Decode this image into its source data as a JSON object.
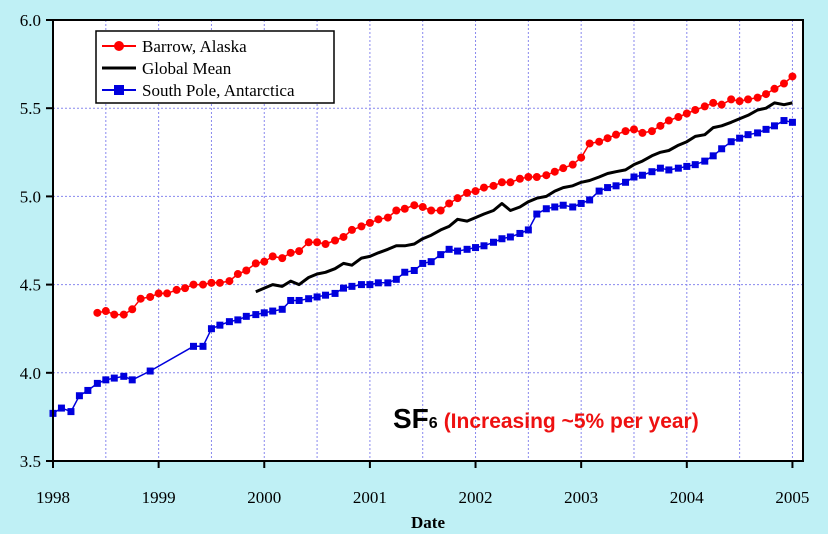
{
  "chart_data": {
    "type": "line",
    "title": "",
    "xlabel": "Date",
    "ylabel": "",
    "xlim": [
      1998.0,
      2005.1
    ],
    "ylim": [
      3.5,
      6.0
    ],
    "x_ticks": [
      "1998",
      "1999",
      "2000",
      "2001",
      "2002",
      "2003",
      "2004",
      "2005"
    ],
    "y_ticks": [
      "3.5",
      "4.0",
      "4.5",
      "5.0",
      "5.5",
      "6.0"
    ],
    "grid": true,
    "legend_position": "top-left",
    "annotation": {
      "main": "SF",
      "sub": "6",
      "note": "(Increasing ~5% per year)"
    },
    "series": [
      {
        "name": "Barrow, Alaska",
        "color": "#ff0000",
        "marker": "circle",
        "x": [
          1998.42,
          1998.5,
          1998.58,
          1998.67,
          1998.75,
          1998.83,
          1998.92,
          1999.0,
          1999.08,
          1999.17,
          1999.25,
          1999.33,
          1999.42,
          1999.5,
          1999.58,
          1999.67,
          1999.75,
          1999.83,
          1999.92,
          2000.0,
          2000.08,
          2000.17,
          2000.25,
          2000.33,
          2000.42,
          2000.5,
          2000.58,
          2000.67,
          2000.75,
          2000.83,
          2000.92,
          2001.0,
          2001.08,
          2001.17,
          2001.25,
          2001.33,
          2001.42,
          2001.5,
          2001.58,
          2001.67,
          2001.75,
          2001.83,
          2001.92,
          2002.0,
          2002.08,
          2002.17,
          2002.25,
          2002.33,
          2002.42,
          2002.5,
          2002.58,
          2002.67,
          2002.75,
          2002.83,
          2002.92,
          2003.0,
          2003.08,
          2003.17,
          2003.25,
          2003.33,
          2003.42,
          2003.5,
          2003.58,
          2003.67,
          2003.75,
          2003.83,
          2003.92,
          2004.0,
          2004.08,
          2004.17,
          2004.25,
          2004.33,
          2004.42,
          2004.5,
          2004.58,
          2004.67,
          2004.75,
          2004.83,
          2004.92,
          2005.0
        ],
        "values": [
          4.34,
          4.35,
          4.33,
          4.33,
          4.36,
          4.42,
          4.43,
          4.45,
          4.45,
          4.47,
          4.48,
          4.5,
          4.5,
          4.51,
          4.51,
          4.52,
          4.56,
          4.58,
          4.62,
          4.63,
          4.66,
          4.65,
          4.68,
          4.69,
          4.74,
          4.74,
          4.73,
          4.75,
          4.77,
          4.81,
          4.83,
          4.85,
          4.87,
          4.88,
          4.92,
          4.93,
          4.95,
          4.94,
          4.92,
          4.92,
          4.96,
          4.99,
          5.02,
          5.03,
          5.05,
          5.06,
          5.08,
          5.08,
          5.1,
          5.11,
          5.11,
          5.12,
          5.14,
          5.16,
          5.18,
          5.22,
          5.3,
          5.31,
          5.33,
          5.35,
          5.37,
          5.38,
          5.36,
          5.37,
          5.4,
          5.43,
          5.45,
          5.47,
          5.49,
          5.51,
          5.53,
          5.52,
          5.55,
          5.54,
          5.55,
          5.56,
          5.58,
          5.61,
          5.64,
          5.68
        ]
      },
      {
        "name": "Global Mean",
        "color": "#000000",
        "marker": "none",
        "x": [
          1999.92,
          2000.0,
          2000.08,
          2000.17,
          2000.25,
          2000.33,
          2000.42,
          2000.5,
          2000.58,
          2000.67,
          2000.75,
          2000.83,
          2000.92,
          2001.0,
          2001.08,
          2001.17,
          2001.25,
          2001.33,
          2001.42,
          2001.5,
          2001.58,
          2001.67,
          2001.75,
          2001.83,
          2001.92,
          2002.0,
          2002.08,
          2002.17,
          2002.25,
          2002.33,
          2002.42,
          2002.5,
          2002.58,
          2002.67,
          2002.75,
          2002.83,
          2002.92,
          2003.0,
          2003.08,
          2003.17,
          2003.25,
          2003.33,
          2003.42,
          2003.5,
          2003.58,
          2003.67,
          2003.75,
          2003.83,
          2003.92,
          2004.0,
          2004.08,
          2004.17,
          2004.25,
          2004.33,
          2004.42,
          2004.5,
          2004.58,
          2004.67,
          2004.75,
          2004.83,
          2004.92,
          2005.0
        ],
        "values": [
          4.46,
          4.48,
          4.5,
          4.49,
          4.52,
          4.5,
          4.54,
          4.56,
          4.57,
          4.59,
          4.62,
          4.61,
          4.65,
          4.66,
          4.68,
          4.7,
          4.72,
          4.72,
          4.73,
          4.76,
          4.78,
          4.81,
          4.83,
          4.87,
          4.86,
          4.88,
          4.9,
          4.92,
          4.96,
          4.92,
          4.94,
          4.97,
          4.99,
          5.0,
          5.03,
          5.05,
          5.06,
          5.08,
          5.09,
          5.11,
          5.13,
          5.14,
          5.15,
          5.18,
          5.2,
          5.23,
          5.25,
          5.26,
          5.29,
          5.31,
          5.34,
          5.35,
          5.39,
          5.4,
          5.42,
          5.44,
          5.46,
          5.49,
          5.5,
          5.53,
          5.52,
          5.53
        ]
      },
      {
        "name": "South Pole, Antarctica",
        "color": "#0000dd",
        "marker": "square",
        "x": [
          1998.0,
          1998.08,
          1998.17,
          1998.25,
          1998.33,
          1998.42,
          1998.5,
          1998.58,
          1998.67,
          1998.75,
          1998.92,
          1999.33,
          1999.42,
          1999.5,
          1999.58,
          1999.67,
          1999.75,
          1999.83,
          1999.92,
          2000.0,
          2000.08,
          2000.17,
          2000.25,
          2000.33,
          2000.42,
          2000.5,
          2000.58,
          2000.67,
          2000.75,
          2000.83,
          2000.92,
          2001.0,
          2001.08,
          2001.17,
          2001.25,
          2001.33,
          2001.42,
          2001.5,
          2001.58,
          2001.67,
          2001.75,
          2001.83,
          2001.92,
          2002.0,
          2002.08,
          2002.17,
          2002.25,
          2002.33,
          2002.42,
          2002.5,
          2002.58,
          2002.67,
          2002.75,
          2002.83,
          2002.92,
          2003.0,
          2003.08,
          2003.17,
          2003.25,
          2003.33,
          2003.42,
          2003.5,
          2003.58,
          2003.67,
          2003.75,
          2003.83,
          2003.92,
          2004.0,
          2004.08,
          2004.17,
          2004.25,
          2004.33,
          2004.42,
          2004.5,
          2004.58,
          2004.67,
          2004.75,
          2004.83,
          2004.92,
          2005.0
        ],
        "values": [
          3.77,
          3.8,
          3.78,
          3.87,
          3.9,
          3.94,
          3.96,
          3.97,
          3.98,
          3.96,
          4.01,
          4.15,
          4.15,
          4.25,
          4.27,
          4.29,
          4.3,
          4.32,
          4.33,
          4.34,
          4.35,
          4.36,
          4.41,
          4.41,
          4.42,
          4.43,
          4.44,
          4.45,
          4.48,
          4.49,
          4.5,
          4.5,
          4.51,
          4.51,
          4.53,
          4.57,
          4.58,
          4.62,
          4.63,
          4.67,
          4.7,
          4.69,
          4.7,
          4.71,
          4.72,
          4.74,
          4.76,
          4.77,
          4.79,
          4.81,
          4.9,
          4.93,
          4.94,
          4.95,
          4.94,
          4.96,
          4.98,
          5.03,
          5.05,
          5.06,
          5.08,
          5.11,
          5.12,
          5.14,
          5.16,
          5.15,
          5.16,
          5.17,
          5.18,
          5.2,
          5.23,
          5.27,
          5.31,
          5.33,
          5.35,
          5.36,
          5.38,
          5.4,
          5.43,
          5.42
        ]
      }
    ]
  }
}
